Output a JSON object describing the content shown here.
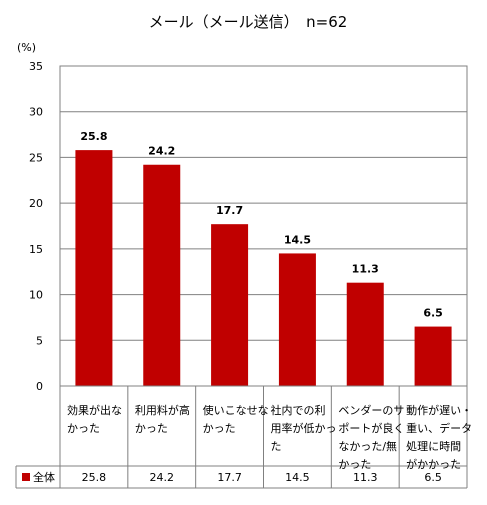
{
  "chart_data": {
    "type": "bar",
    "title": "メール（メール送信）　n=62",
    "ylabel": "(%)",
    "ylim": [
      0,
      35
    ],
    "yticks": [
      0,
      5,
      10,
      15,
      20,
      25,
      30,
      35
    ],
    "grid": true,
    "categories": [
      [
        "効果が出な",
        "かった"
      ],
      [
        "利用料が高",
        "かった"
      ],
      [
        "使いこなせな",
        "かった"
      ],
      [
        "社内での利",
        "用率が低かっ",
        "た"
      ],
      [
        "ベンダーのサ",
        "ポートが良く",
        "なかった/無",
        "かった"
      ],
      [
        "動作が遅い・",
        "重い、データ",
        "処理に時間",
        "がかかった"
      ]
    ],
    "series": [
      {
        "name": "全体",
        "values": [
          25.8,
          24.2,
          17.7,
          14.5,
          11.3,
          6.5
        ],
        "labels": [
          "25.8",
          "24.2",
          "17.7",
          "14.5",
          "11.3",
          "6.5"
        ],
        "color": "#c00000"
      }
    ],
    "legend": "data-table-bottom"
  }
}
